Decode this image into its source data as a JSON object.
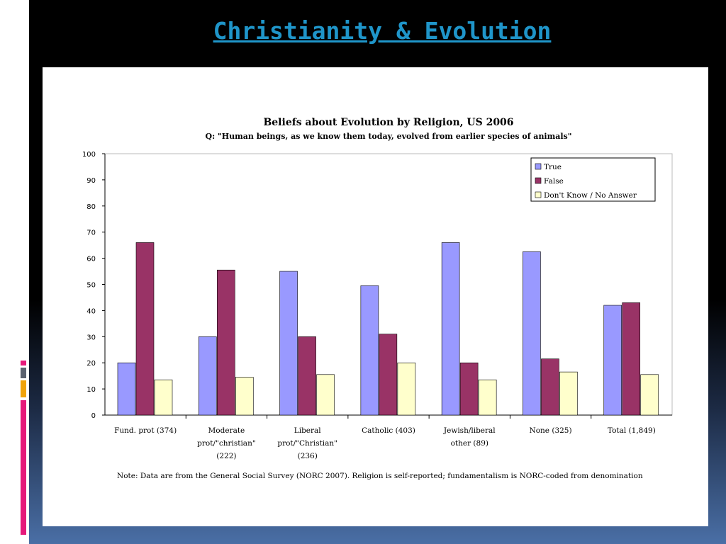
{
  "slide": {
    "title": "Christianity & Evolution"
  },
  "colors": {
    "title": "#1f95c9",
    "true": "#9999ff",
    "false": "#993366",
    "dont_know": "#ffffcc",
    "accent_pink": "#e5197a",
    "accent_gray": "#5b6270",
    "accent_orange": "#f0a30a"
  },
  "chart_data": {
    "type": "bar",
    "title": "Beliefs about Evolution by Religion, US 2006",
    "subtitle": "Q: \"Human beings, as we know them today, evolved from earlier species of animals\"",
    "categories": [
      [
        "Fund. prot (374)"
      ],
      [
        "Moderate",
        "prot/\"christian\"",
        "(222)"
      ],
      [
        "Liberal",
        "prot/\"Christian\"",
        "(236)"
      ],
      [
        "Catholic (403)"
      ],
      [
        "Jewish/liberal",
        "other (89)"
      ],
      [
        "None (325)"
      ],
      [
        "Total (1,849)"
      ]
    ],
    "series": [
      {
        "name": "True",
        "values": [
          20,
          30,
          55,
          49.5,
          66,
          62.5,
          42
        ]
      },
      {
        "name": "False",
        "values": [
          66,
          55.5,
          30,
          31,
          20,
          21.5,
          43
        ]
      },
      {
        "name": "Don't Know / No Answer",
        "values": [
          13.5,
          14.5,
          15.5,
          20,
          13.5,
          16.5,
          15.5
        ]
      }
    ],
    "ylim": [
      0,
      100
    ],
    "yticks": [
      0,
      10,
      20,
      30,
      40,
      50,
      60,
      70,
      80,
      90,
      100
    ],
    "xlabel": "",
    "ylabel": "",
    "legend": "top-right",
    "grid": false,
    "note": "Note: Data are from the General Social Survey (NORC 2007). Religion is self-reported; fundamentalism is NORC-coded from denomination"
  }
}
